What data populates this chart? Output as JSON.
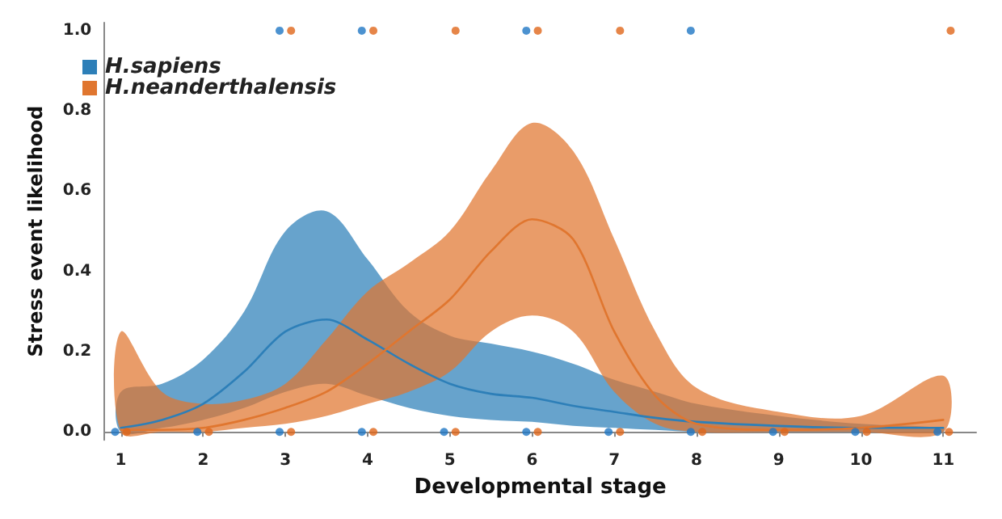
{
  "chart_data": {
    "type": "line",
    "xlabel": "Developmental stage",
    "ylabel": "Stress event likelihood",
    "xlim": [
      0.8,
      11.4
    ],
    "xticks": [
      1,
      2,
      3,
      4,
      5,
      6,
      7,
      8,
      9,
      10,
      11
    ],
    "ylim": [
      -0.02,
      1.02
    ],
    "yticks": [
      {
        "value": 0,
        "label": "0.0"
      },
      {
        "value": 0.2,
        "label": "0.2"
      },
      {
        "value": 0.4,
        "label": "0.4"
      },
      {
        "value": 0.6,
        "label": "0.6"
      },
      {
        "value": 0.8,
        "label": "0.8"
      },
      {
        "value": 1,
        "label": "1.0"
      }
    ],
    "grid": false,
    "legend": "top left",
    "marker": "none",
    "line_style": "solid",
    "series": [
      {
        "name": "H.sapiens",
        "color": "#2d7fb8",
        "x": [
          1,
          1.5,
          2,
          2.5,
          3,
          3.5,
          4,
          4.5,
          5,
          5.5,
          6,
          6.5,
          7,
          7.5,
          8,
          9,
          10,
          11
        ],
        "values": [
          0.01,
          0.03,
          0.07,
          0.15,
          0.25,
          0.28,
          0.23,
          0.17,
          0.12,
          0.095,
          0.085,
          0.065,
          0.05,
          0.035,
          0.025,
          0.015,
          0.01,
          0.01
        ],
        "upper": [
          0.1,
          0.12,
          0.18,
          0.3,
          0.5,
          0.55,
          0.43,
          0.3,
          0.24,
          0.22,
          0.2,
          0.17,
          0.13,
          0.1,
          0.07,
          0.04,
          0.02,
          0.01
        ],
        "lower": [
          0,
          0.01,
          0.03,
          0.06,
          0.1,
          0.12,
          0.09,
          0.06,
          0.04,
          0.03,
          0.025,
          0.015,
          0.01,
          0.005,
          0,
          0,
          0,
          0
        ]
      },
      {
        "name": "H.neanderthalensis",
        "color": "#e0762f",
        "x": [
          1,
          1.5,
          2,
          2.5,
          3,
          3.5,
          4,
          4.5,
          5,
          5.5,
          6,
          6.5,
          7,
          7.5,
          8,
          9,
          10,
          11
        ],
        "values": [
          0.005,
          0.005,
          0.01,
          0.03,
          0.06,
          0.1,
          0.17,
          0.25,
          0.33,
          0.45,
          0.53,
          0.48,
          0.25,
          0.09,
          0.02,
          0.005,
          0.01,
          0.03
        ],
        "upper": [
          0.25,
          0.1,
          0.07,
          0.08,
          0.12,
          0.23,
          0.35,
          0.42,
          0.5,
          0.65,
          0.77,
          0.7,
          0.48,
          0.25,
          0.11,
          0.05,
          0.04,
          0.14
        ],
        "lower": [
          0,
          0,
          0,
          0.01,
          0.02,
          0.04,
          0.07,
          0.1,
          0.15,
          0.25,
          0.29,
          0.25,
          0.1,
          0.02,
          0,
          0,
          0,
          0
        ]
      },
      {
        "type": "scatter",
        "color": "#1f77c4",
        "marker": "circle",
        "x": [
          0.93,
          1.93,
          2.93,
          3.93,
          4.93,
          5.93,
          6.93,
          7.93,
          8.93,
          9.93,
          10.93,
          2.93,
          3.93,
          5.93,
          7.93
        ],
        "values": [
          0,
          0,
          0,
          0,
          0,
          0,
          0,
          0,
          0,
          0,
          0,
          1,
          1,
          1,
          1
        ]
      },
      {
        "type": "scatter",
        "color": "#e0661a",
        "marker": "circle",
        "x": [
          1.07,
          2.07,
          3.07,
          4.07,
          5.07,
          6.07,
          7.07,
          8.07,
          9.07,
          10.07,
          11.07,
          3.07,
          4.07,
          5.07,
          6.07,
          7.07,
          11.09
        ],
        "values": [
          0,
          0,
          0,
          0,
          0,
          0,
          0,
          0,
          0,
          0,
          0,
          1,
          1,
          1,
          1,
          1,
          1
        ]
      }
    ]
  }
}
